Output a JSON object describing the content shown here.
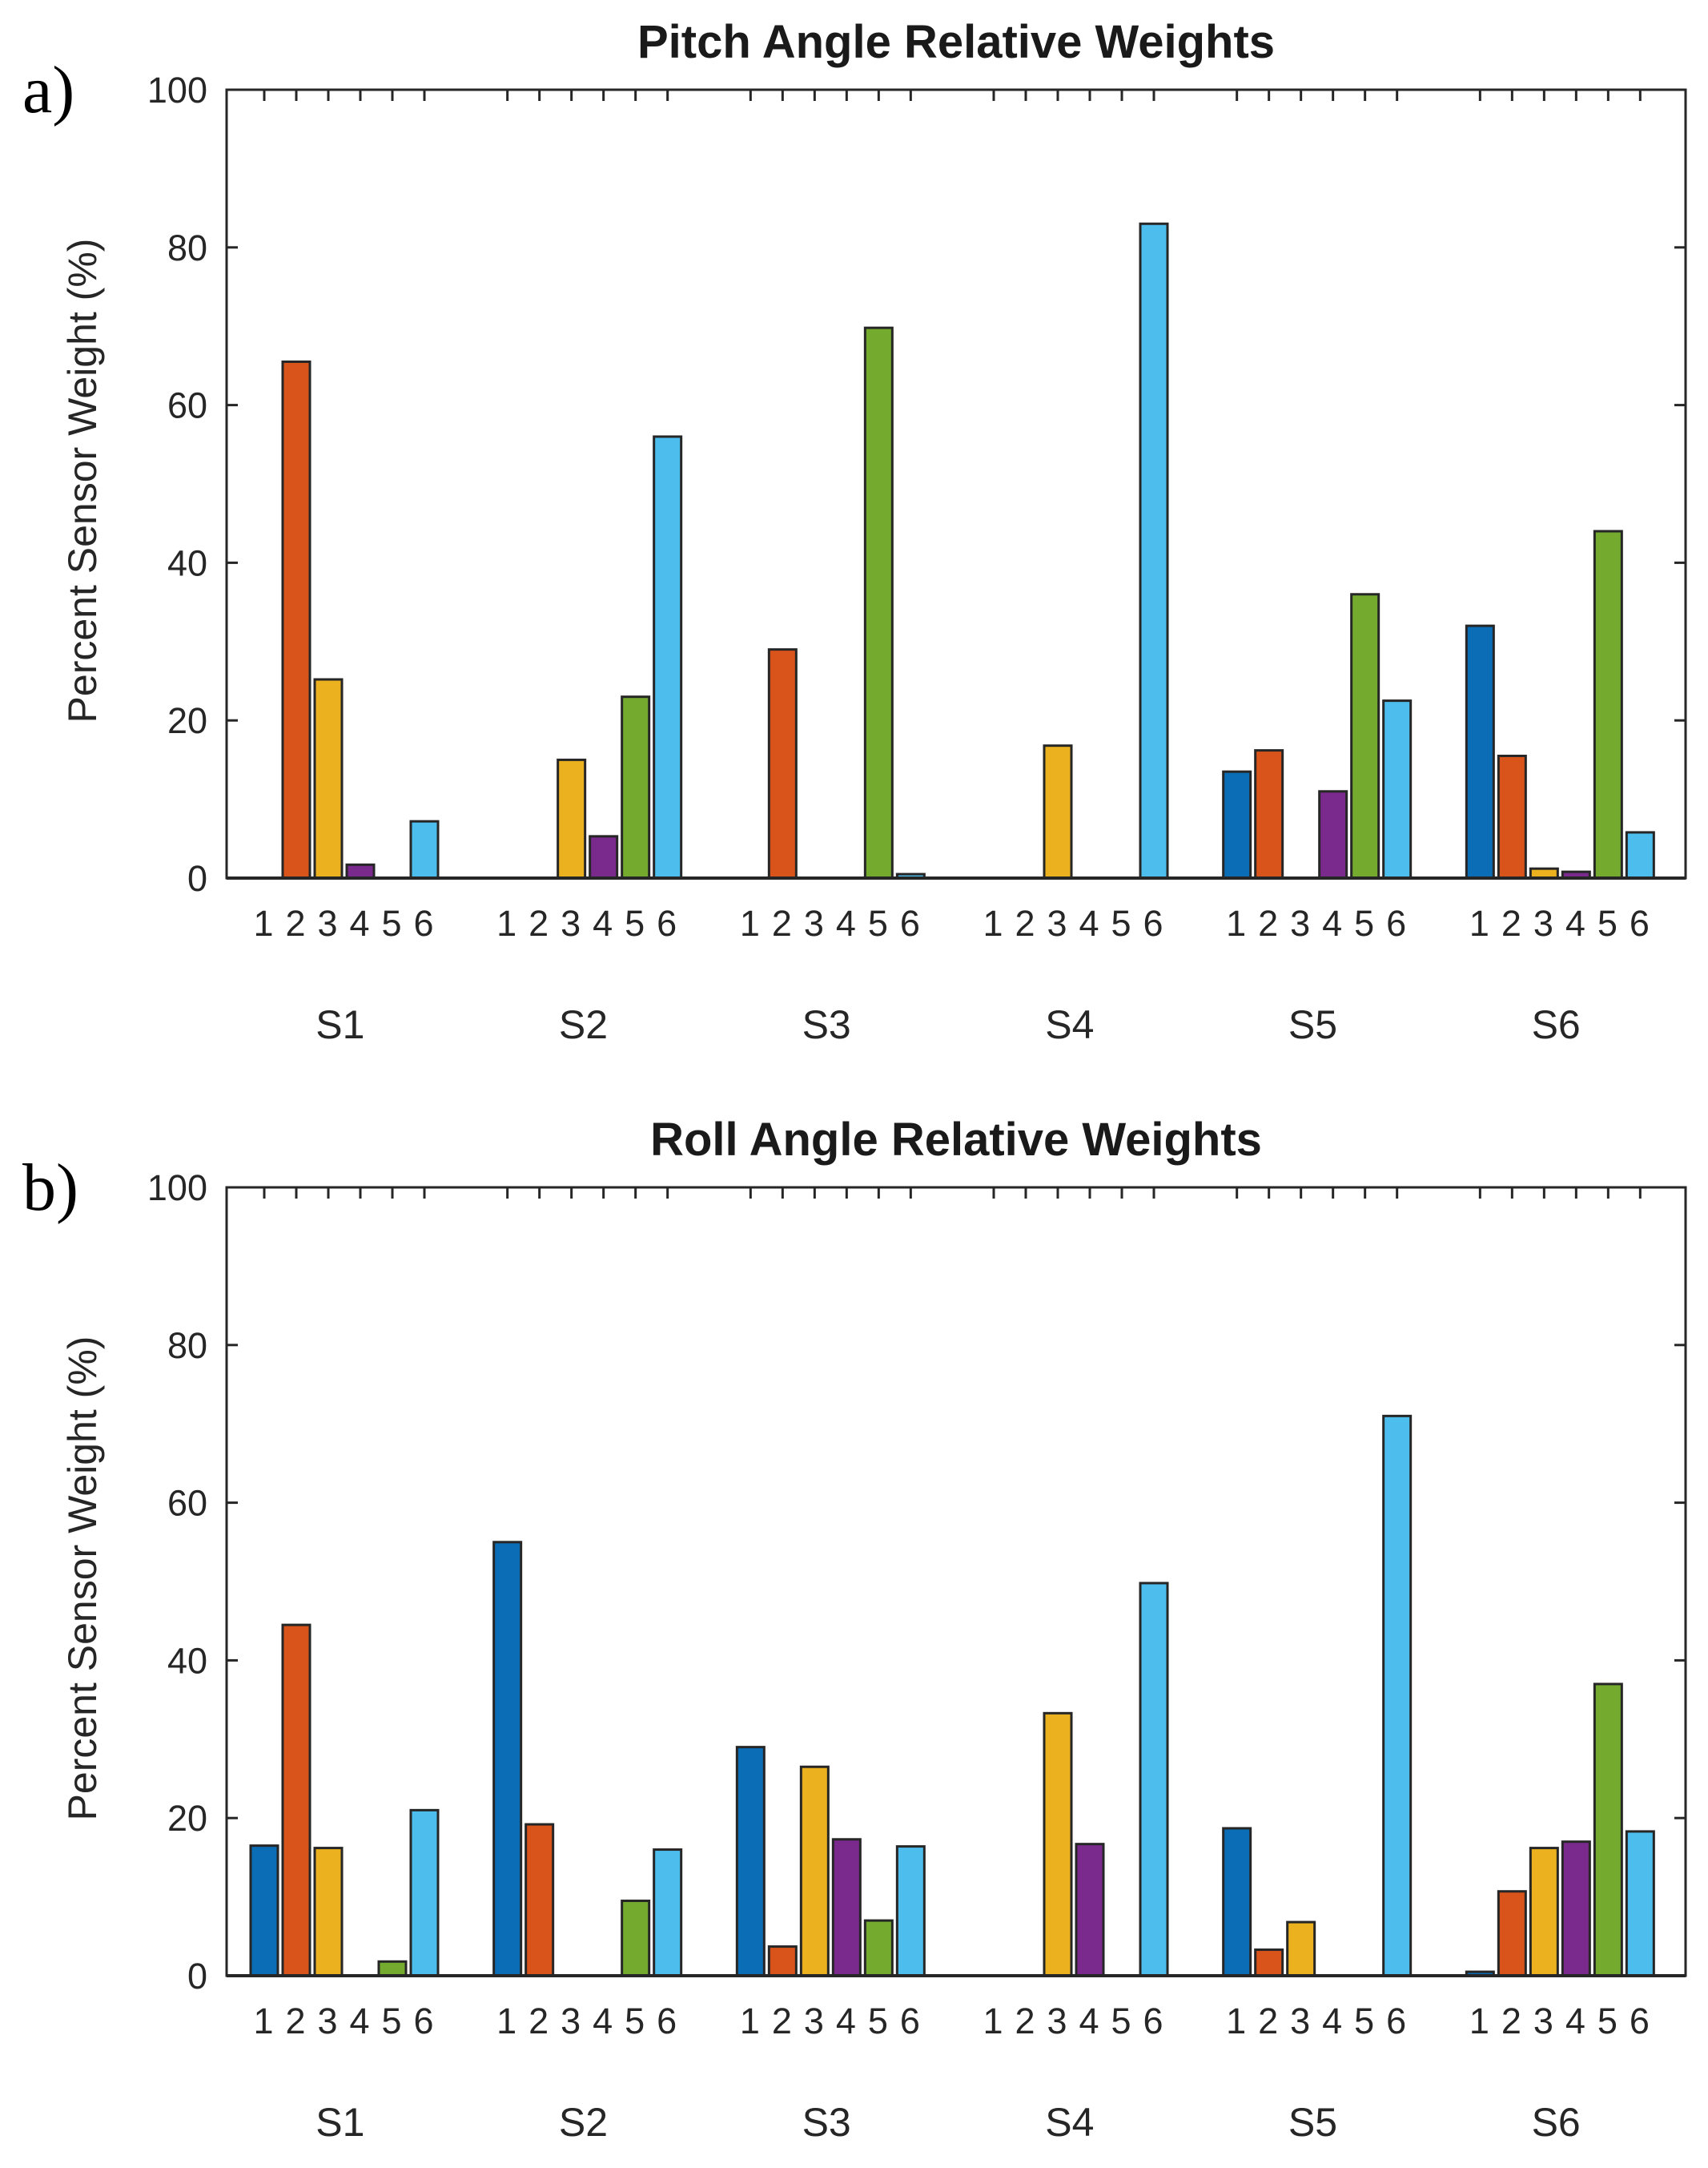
{
  "chart_data": [
    {
      "type": "bar",
      "panel_label": "a)",
      "title": "Pitch Angle Relative Weights",
      "ylabel": "Percent Sensor Weight (%)",
      "xlabel": "",
      "ylim": [
        0,
        100
      ],
      "yticks": [
        0,
        20,
        40,
        60,
        80,
        100
      ],
      "groups": [
        "S1",
        "S2",
        "S3",
        "S4",
        "S5",
        "S6"
      ],
      "sublabels": [
        "1",
        "2",
        "3",
        "4",
        "5",
        "6"
      ],
      "series": [
        {
          "values": [
            0,
            0,
            0,
            0,
            13.5,
            32
          ]
        },
        {
          "values": [
            65.5,
            0,
            29,
            0,
            16.2,
            15.5
          ]
        },
        {
          "values": [
            25.2,
            15,
            0,
            16.8,
            0,
            1.2
          ]
        },
        {
          "values": [
            1.7,
            5.3,
            0,
            0,
            11,
            0.8
          ]
        },
        {
          "values": [
            0,
            23,
            69.8,
            0,
            36,
            44
          ]
        },
        {
          "values": [
            7.2,
            56,
            0.5,
            83,
            22.5,
            5.8
          ]
        }
      ]
    },
    {
      "type": "bar",
      "panel_label": "b)",
      "title": "Roll Angle Relative Weights",
      "ylabel": "Percent Sensor Weight (%)",
      "xlabel": "",
      "ylim": [
        0,
        100
      ],
      "yticks": [
        0,
        20,
        40,
        60,
        80,
        100
      ],
      "groups": [
        "S1",
        "S2",
        "S3",
        "S4",
        "S5",
        "S6"
      ],
      "sublabels": [
        "1",
        "2",
        "3",
        "4",
        "5",
        "6"
      ],
      "series": [
        {
          "values": [
            16.5,
            55,
            29,
            0,
            18.7,
            0.5
          ]
        },
        {
          "values": [
            44.5,
            19.2,
            3.7,
            0,
            3.3,
            10.7
          ]
        },
        {
          "values": [
            16.2,
            0,
            26.5,
            33.3,
            6.8,
            16.2
          ]
        },
        {
          "values": [
            0,
            0,
            17.3,
            16.7,
            0,
            17
          ]
        },
        {
          "values": [
            1.8,
            9.5,
            7,
            0,
            0,
            37
          ]
        },
        {
          "values": [
            21,
            16,
            16.4,
            49.8,
            71,
            18.3
          ]
        }
      ]
    }
  ],
  "colors": [
    "#0b6db5",
    "#d9541a",
    "#ebb11e",
    "#7a2a8c",
    "#74ab2f",
    "#4cbdec"
  ],
  "axis_color": "#262626"
}
